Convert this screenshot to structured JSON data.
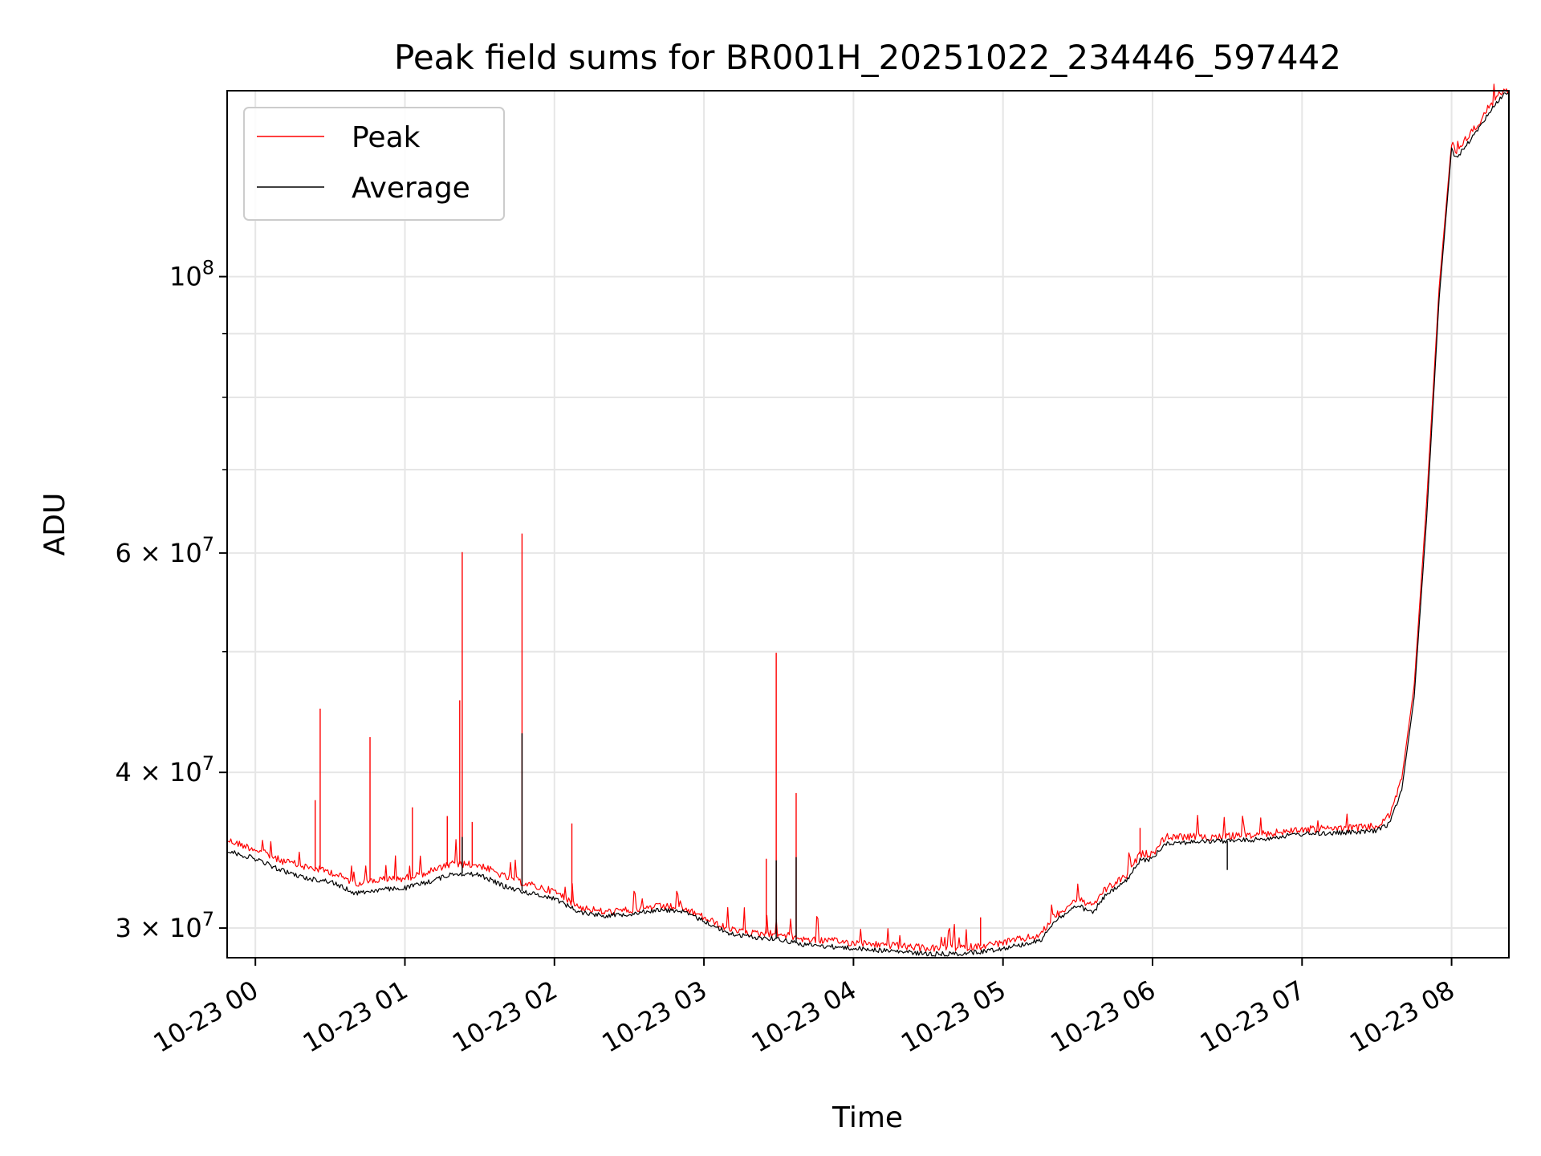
{
  "chart_data": {
    "type": "line",
    "title": "Peak field sums for BR001H_20251022_234446_597442",
    "xlabel": "Time",
    "ylabel": "ADU",
    "y_scale": "log",
    "ylim": [
      28400000,
      141000000
    ],
    "xlim": [
      "2025-10-22 23:48:40",
      "2025-10-23 08:23:00"
    ],
    "grid": true,
    "legend_position": "upper-left",
    "x_ticks": [
      {
        "label": "10-23 00",
        "t": "2025-10-23 00:00"
      },
      {
        "label": "10-23 01",
        "t": "2025-10-23 01:00"
      },
      {
        "label": "10-23 02",
        "t": "2025-10-23 02:00"
      },
      {
        "label": "10-23 03",
        "t": "2025-10-23 03:00"
      },
      {
        "label": "10-23 04",
        "t": "2025-10-23 04:00"
      },
      {
        "label": "10-23 05",
        "t": "2025-10-23 05:00"
      },
      {
        "label": "10-23 06",
        "t": "2025-10-23 06:00"
      },
      {
        "label": "10-23 07",
        "t": "2025-10-23 07:00"
      },
      {
        "label": "10-23 08",
        "t": "2025-10-23 08:00"
      }
    ],
    "y_ticks": [
      {
        "base": "3",
        "exp": "7",
        "value": 30000000
      },
      {
        "base": "4",
        "exp": "7",
        "value": 40000000
      },
      {
        "base": "6",
        "exp": "7",
        "value": 60000000
      },
      {
        "base": "10",
        "exp": "8",
        "value": 100000000
      }
    ],
    "y_minor_grid": [
      50000000,
      70000000,
      80000000,
      90000000
    ],
    "series": [
      {
        "name": "Peak",
        "color": "#ff0000",
        "points": [
          [
            "2025-10-22 23:48:40",
            35300000
          ],
          [
            "2025-10-23 00:00",
            34700000
          ],
          [
            "2025-10-23 00:10",
            34000000
          ],
          [
            "2025-10-23 00:20",
            33600000
          ],
          [
            "2025-10-23 00:30",
            33300000
          ],
          [
            "2025-10-23 00:40",
            32600000
          ],
          [
            "2025-10-23 00:50",
            32800000
          ],
          [
            "2025-10-23 01:00",
            32900000
          ],
          [
            "2025-10-23 01:10",
            33300000
          ],
          [
            "2025-10-23 01:20",
            33800000
          ],
          [
            "2025-10-23 01:30",
            33700000
          ],
          [
            "2025-10-23 01:40",
            33000000
          ],
          [
            "2025-10-23 01:50",
            32500000
          ],
          [
            "2025-10-23 02:00",
            32100000
          ],
          [
            "2025-10-23 02:10",
            31200000
          ],
          [
            "2025-10-23 02:20",
            30900000
          ],
          [
            "2025-10-23 02:30",
            31000000
          ],
          [
            "2025-10-23 02:40",
            31200000
          ],
          [
            "2025-10-23 02:50",
            31200000
          ],
          [
            "2025-10-23 03:00",
            30600000
          ],
          [
            "2025-10-23 03:10",
            29900000
          ],
          [
            "2025-10-23 03:20",
            29700000
          ],
          [
            "2025-10-23 03:30",
            29700000
          ],
          [
            "2025-10-23 03:40",
            29400000
          ],
          [
            "2025-10-23 03:50",
            29300000
          ],
          [
            "2025-10-23 04:00",
            29200000
          ],
          [
            "2025-10-23 04:10",
            29100000
          ],
          [
            "2025-10-23 04:20",
            29000000
          ],
          [
            "2025-10-23 04:30",
            28900000
          ],
          [
            "2025-10-23 04:40",
            28900000
          ],
          [
            "2025-10-23 04:50",
            29000000
          ],
          [
            "2025-10-23 05:00",
            29200000
          ],
          [
            "2025-10-23 05:15",
            29600000
          ],
          [
            "2025-10-23 05:20",
            30600000
          ],
          [
            "2025-10-23 05:30",
            31700000
          ],
          [
            "2025-10-23 05:36",
            31200000
          ],
          [
            "2025-10-23 05:40",
            32100000
          ],
          [
            "2025-10-23 05:50",
            33100000
          ],
          [
            "2025-10-23 05:55",
            34400000
          ],
          [
            "2025-10-23 06:00",
            34400000
          ],
          [
            "2025-10-23 06:05",
            35500000
          ],
          [
            "2025-10-23 06:20",
            35500000
          ],
          [
            "2025-10-23 06:40",
            35600000
          ],
          [
            "2025-10-23 07:00",
            36000000
          ],
          [
            "2025-10-23 07:20",
            36100000
          ],
          [
            "2025-10-23 07:30",
            36200000
          ],
          [
            "2025-10-23 07:35",
            36900000
          ],
          [
            "2025-10-23 07:40",
            39500000
          ],
          [
            "2025-10-23 07:45",
            47000000
          ],
          [
            "2025-10-23 07:50",
            66000000
          ],
          [
            "2025-10-23 07:55",
            98000000
          ],
          [
            "2025-10-23 08:00",
            128000000
          ],
          [
            "2025-10-23 08:02",
            126000000
          ],
          [
            "2025-10-23 08:05",
            128500000
          ],
          [
            "2025-10-23 08:10",
            132000000
          ],
          [
            "2025-10-23 08:15",
            137000000
          ],
          [
            "2025-10-23 08:20",
            140500000
          ],
          [
            "2025-10-23 08:23:00",
            141000000
          ]
        ],
        "spikes": [
          [
            "2025-10-23 00:26",
            45000000
          ],
          [
            "2025-10-23 00:24",
            38000000
          ],
          [
            "2025-10-23 00:46",
            42700000
          ],
          [
            "2025-10-23 01:03",
            37500000
          ],
          [
            "2025-10-23 01:17",
            36900000
          ],
          [
            "2025-10-23 01:22",
            45700000
          ],
          [
            "2025-10-23 01:23",
            60100000
          ],
          [
            "2025-10-23 01:27",
            36500000
          ],
          [
            "2025-10-23 01:47",
            62200000
          ],
          [
            "2025-10-23 02:07",
            36400000
          ],
          [
            "2025-10-23 03:29",
            49900000
          ],
          [
            "2025-10-23 03:37",
            38500000
          ],
          [
            "2025-10-23 03:25",
            34100000
          ],
          [
            "2025-10-23 04:51",
            30600000
          ],
          [
            "2025-10-23 05:55",
            36100000
          ]
        ]
      },
      {
        "name": "Average",
        "color": "#000000",
        "points": [
          [
            "2025-10-22 23:48:40",
            34600000
          ],
          [
            "2025-10-23 00:00",
            34100000
          ],
          [
            "2025-10-23 00:10",
            33400000
          ],
          [
            "2025-10-23 00:20",
            32900000
          ],
          [
            "2025-10-23 00:30",
            32700000
          ],
          [
            "2025-10-23 00:40",
            32000000
          ],
          [
            "2025-10-23 00:50",
            32200000
          ],
          [
            "2025-10-23 01:00",
            32300000
          ],
          [
            "2025-10-23 01:10",
            32700000
          ],
          [
            "2025-10-23 01:20",
            33200000
          ],
          [
            "2025-10-23 01:30",
            33100000
          ],
          [
            "2025-10-23 01:40",
            32400000
          ],
          [
            "2025-10-23 01:50",
            32000000
          ],
          [
            "2025-10-23 02:00",
            31700000
          ],
          [
            "2025-10-23 02:10",
            30900000
          ],
          [
            "2025-10-23 02:20",
            30700000
          ],
          [
            "2025-10-23 02:30",
            30800000
          ],
          [
            "2025-10-23 02:40",
            31000000
          ],
          [
            "2025-10-23 02:50",
            31000000
          ],
          [
            "2025-10-23 03:00",
            30400000
          ],
          [
            "2025-10-23 03:10",
            29700000
          ],
          [
            "2025-10-23 03:20",
            29500000
          ],
          [
            "2025-10-23 03:30",
            29400000
          ],
          [
            "2025-10-23 03:40",
            29100000
          ],
          [
            "2025-10-23 03:50",
            29000000
          ],
          [
            "2025-10-23 04:00",
            28900000
          ],
          [
            "2025-10-23 04:10",
            28800000
          ],
          [
            "2025-10-23 04:20",
            28700000
          ],
          [
            "2025-10-23 04:30",
            28600000
          ],
          [
            "2025-10-23 04:40",
            28600000
          ],
          [
            "2025-10-23 04:50",
            28700000
          ],
          [
            "2025-10-23 05:00",
            28900000
          ],
          [
            "2025-10-23 05:15",
            29300000
          ],
          [
            "2025-10-23 05:20",
            30300000
          ],
          [
            "2025-10-23 05:30",
            31300000
          ],
          [
            "2025-10-23 05:36",
            30800000
          ],
          [
            "2025-10-23 05:40",
            31700000
          ],
          [
            "2025-10-23 05:50",
            32800000
          ],
          [
            "2025-10-23 05:55",
            34000000
          ],
          [
            "2025-10-23 06:00",
            34100000
          ],
          [
            "2025-10-23 06:05",
            35100000
          ],
          [
            "2025-10-23 06:20",
            35200000
          ],
          [
            "2025-10-23 06:40",
            35300000
          ],
          [
            "2025-10-23 07:00",
            35700000
          ],
          [
            "2025-10-23 07:20",
            35800000
          ],
          [
            "2025-10-23 07:30",
            35900000
          ],
          [
            "2025-10-23 07:35",
            36400000
          ],
          [
            "2025-10-23 07:40",
            38700000
          ],
          [
            "2025-10-23 07:45",
            46000000
          ],
          [
            "2025-10-23 07:50",
            64000000
          ],
          [
            "2025-10-23 07:55",
            96000000
          ],
          [
            "2025-10-23 08:00",
            126500000
          ],
          [
            "2025-10-23 08:02",
            124500000
          ],
          [
            "2025-10-23 08:05",
            127000000
          ],
          [
            "2025-10-23 08:10",
            130500000
          ],
          [
            "2025-10-23 08:15",
            135500000
          ],
          [
            "2025-10-23 08:20",
            139500000
          ],
          [
            "2025-10-23 08:23:00",
            140500000
          ]
        ],
        "spikes": [
          [
            "2025-10-23 01:47",
            43000000
          ],
          [
            "2025-10-23 01:23",
            35500000
          ],
          [
            "2025-10-23 03:29",
            34000000
          ],
          [
            "2025-10-23 03:37",
            34200000
          ],
          [
            "2025-10-23 06:30",
            33400000
          ]
        ]
      }
    ]
  }
}
